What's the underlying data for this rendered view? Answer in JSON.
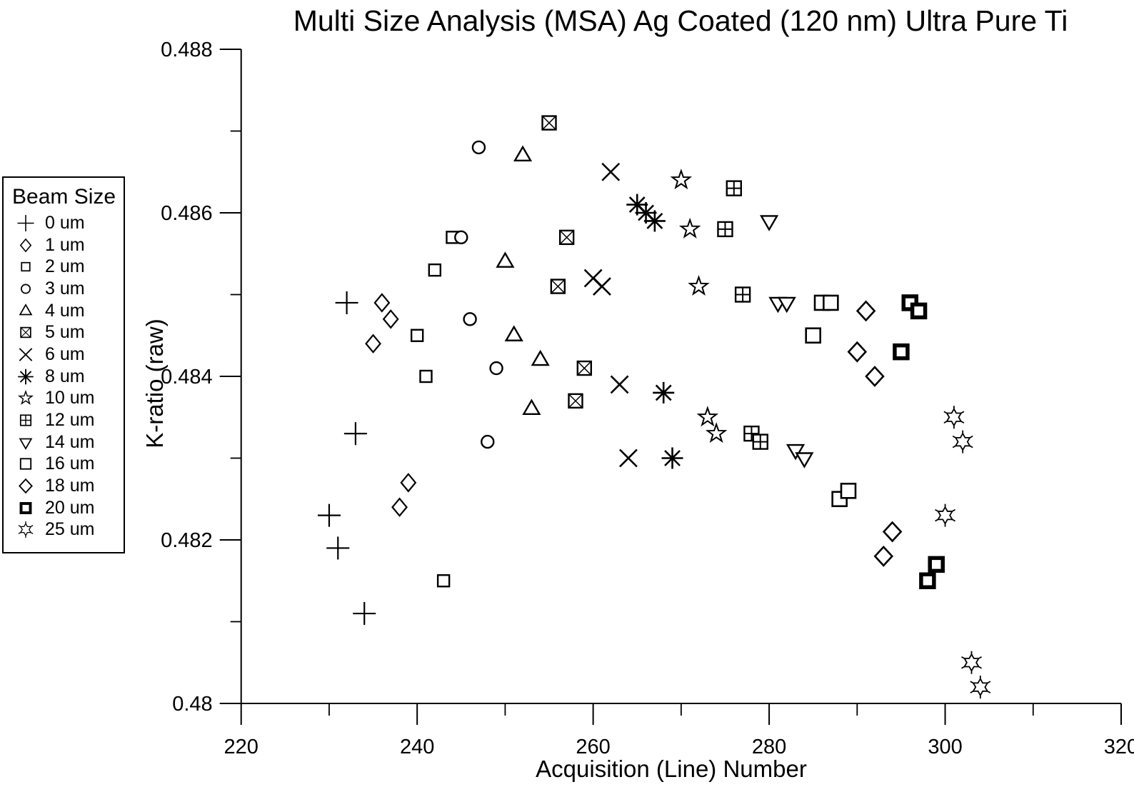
{
  "title": "Multi Size Analysis (MSA) Ag Coated (120 nm) Ultra Pure Ti",
  "chart_data": {
    "type": "scatter",
    "title": "Multi Size Analysis (MSA) Ag Coated (120 nm) Ultra Pure Ti",
    "xlabel": "Acquisition (Line) Number",
    "ylabel": "K-ratio (raw)",
    "xlim": [
      220,
      320
    ],
    "ylim": [
      0.48,
      0.488
    ],
    "xticks_major": [
      220,
      240,
      260,
      280,
      300,
      320
    ],
    "xticks_minor": [
      230,
      250,
      270,
      290,
      310
    ],
    "yticks_major": [
      0.48,
      0.482,
      0.484,
      0.486,
      0.488
    ],
    "ytick_labels": [
      "0.48",
      "0.482",
      "0.484",
      "0.486",
      "0.488"
    ],
    "yticks_minor": [
      0.481,
      0.483,
      0.485,
      0.487
    ],
    "grid": false,
    "legend_title": "Beam Size",
    "legend_position": "left",
    "colors": {
      "foreground": "#000000",
      "background": "#ffffff"
    },
    "series": [
      {
        "name": "0 um",
        "marker": "plus",
        "points": [
          [
            230,
            0.4823
          ],
          [
            231,
            0.4819
          ],
          [
            232,
            0.4849
          ],
          [
            233,
            0.4833
          ],
          [
            234,
            0.4811
          ]
        ]
      },
      {
        "name": "1 um",
        "marker": "diamond",
        "points": [
          [
            235,
            0.4844
          ],
          [
            236,
            0.4849
          ],
          [
            237,
            0.4847
          ],
          [
            238,
            0.4824
          ],
          [
            239,
            0.4827
          ]
        ]
      },
      {
        "name": "2 um",
        "marker": "square",
        "points": [
          [
            240,
            0.4845
          ],
          [
            241,
            0.484
          ],
          [
            242,
            0.4853
          ],
          [
            243,
            0.4815
          ],
          [
            244,
            0.4857
          ]
        ]
      },
      {
        "name": "3 um",
        "marker": "circle",
        "points": [
          [
            245,
            0.4857
          ],
          [
            246,
            0.4847
          ],
          [
            247,
            0.4868
          ],
          [
            248,
            0.4832
          ],
          [
            249,
            0.4841
          ]
        ]
      },
      {
        "name": "4 um",
        "marker": "triangle-up",
        "points": [
          [
            250,
            0.4854
          ],
          [
            251,
            0.4845
          ],
          [
            252,
            0.4867
          ],
          [
            253,
            0.4836
          ],
          [
            254,
            0.4842
          ]
        ]
      },
      {
        "name": "5 um",
        "marker": "square-x",
        "points": [
          [
            255,
            0.4871
          ],
          [
            256,
            0.4851
          ],
          [
            257,
            0.4857
          ],
          [
            258,
            0.4837
          ],
          [
            259,
            0.4841
          ]
        ]
      },
      {
        "name": "6 um",
        "marker": "cross",
        "points": [
          [
            260,
            0.4852
          ],
          [
            261,
            0.4851
          ],
          [
            262,
            0.4865
          ],
          [
            263,
            0.4839
          ],
          [
            264,
            0.483
          ]
        ]
      },
      {
        "name": "8 um",
        "marker": "asterisk",
        "points": [
          [
            265,
            0.4861
          ],
          [
            266,
            0.486
          ],
          [
            267,
            0.4859
          ],
          [
            268,
            0.4838
          ],
          [
            269,
            0.483
          ]
        ]
      },
      {
        "name": "10 um",
        "marker": "star5",
        "points": [
          [
            270,
            0.4864
          ],
          [
            271,
            0.4858
          ],
          [
            272,
            0.4851
          ],
          [
            273,
            0.4835
          ],
          [
            274,
            0.4833
          ]
        ]
      },
      {
        "name": "12 um",
        "marker": "square-plus",
        "points": [
          [
            275,
            0.4858
          ],
          [
            276,
            0.4863
          ],
          [
            277,
            0.485
          ],
          [
            278,
            0.4833
          ],
          [
            279,
            0.4832
          ]
        ]
      },
      {
        "name": "14 um",
        "marker": "triangle-down",
        "points": [
          [
            280,
            0.4859
          ],
          [
            281,
            0.4849
          ],
          [
            282,
            0.4849
          ],
          [
            283,
            0.4831
          ],
          [
            284,
            0.483
          ]
        ]
      },
      {
        "name": "16 um",
        "marker": "square-lg",
        "points": [
          [
            285,
            0.4845
          ],
          [
            286,
            0.4849
          ],
          [
            287,
            0.4849
          ],
          [
            288,
            0.4825
          ],
          [
            289,
            0.4826
          ]
        ]
      },
      {
        "name": "18 um",
        "marker": "diamond-lg",
        "points": [
          [
            290,
            0.4843
          ],
          [
            291,
            0.4848
          ],
          [
            292,
            0.484
          ],
          [
            293,
            0.4818
          ],
          [
            294,
            0.4821
          ]
        ]
      },
      {
        "name": "20 um",
        "marker": "square-bold",
        "points": [
          [
            295,
            0.4843
          ],
          [
            296,
            0.4849
          ],
          [
            297,
            0.4848
          ],
          [
            298,
            0.4815
          ],
          [
            299,
            0.4817
          ]
        ]
      },
      {
        "name": "25 um",
        "marker": "star6",
        "points": [
          [
            300,
            0.4823
          ],
          [
            301,
            0.4835
          ],
          [
            302,
            0.4832
          ],
          [
            303,
            0.4805
          ],
          [
            304,
            0.4802
          ]
        ]
      }
    ]
  }
}
